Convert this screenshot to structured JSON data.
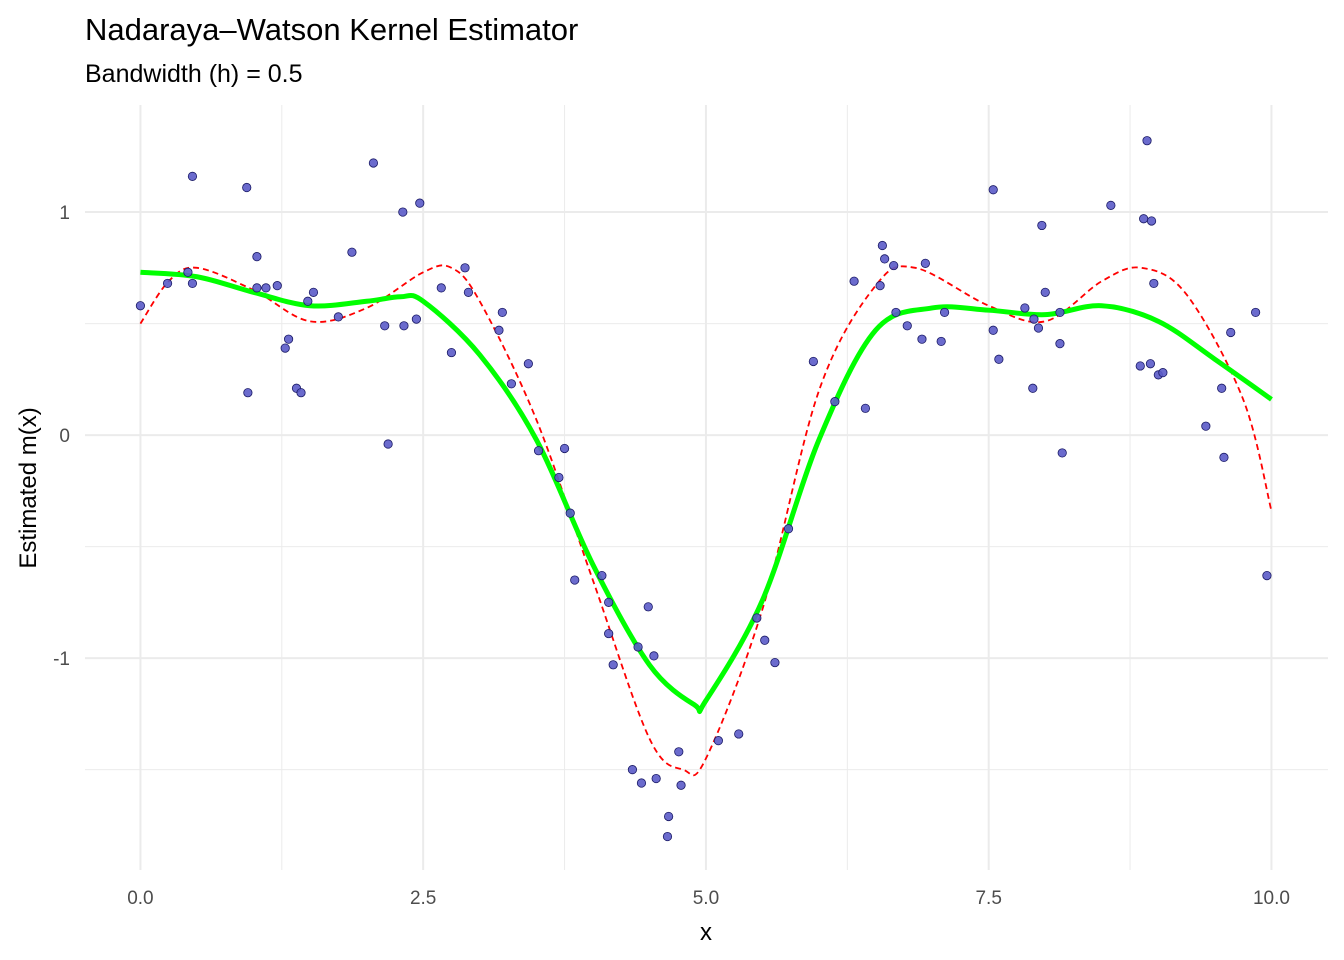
{
  "chart_data": {
    "type": "scatter",
    "title": "Nadaraya–Watson Kernel Estimator",
    "subtitle": "Bandwidth (h) = 0.5",
    "xlabel": "x",
    "ylabel": "Estimated m(x)",
    "xlim": [
      -0.49,
      10.5
    ],
    "ylim": [
      -1.95,
      1.48
    ],
    "xticks": [
      0,
      2.5,
      5,
      7.5,
      10
    ],
    "xtick_labels": [
      "0.0",
      "2.5",
      "5.0",
      "7.5",
      "10.0"
    ],
    "yticks": [
      -1,
      0,
      1
    ],
    "ytick_labels": [
      "-1",
      "0",
      "1"
    ],
    "grid": true,
    "colors": {
      "points": "#5b5bc8",
      "point_border": "#1a1a66",
      "estimate": "#00ff00",
      "true": "#ff0000",
      "grid": "#ebebeb"
    },
    "points": {
      "x": [
        0.0,
        0.24,
        0.42,
        0.46,
        0.46,
        0.94,
        0.95,
        1.03,
        1.03,
        1.11,
        1.21,
        1.28,
        1.31,
        1.38,
        1.42,
        1.48,
        1.53,
        1.75,
        1.87,
        2.06,
        2.16,
        2.19,
        2.32,
        2.33,
        2.44,
        2.47,
        2.66,
        2.75,
        2.87,
        2.9,
        3.17,
        3.2,
        3.28,
        3.43,
        3.52,
        3.7,
        3.75,
        3.8,
        3.84,
        4.08,
        4.14,
        4.14,
        4.18,
        4.35,
        4.4,
        4.43,
        4.49,
        4.54,
        4.56,
        4.67,
        4.66,
        4.76,
        4.78,
        5.11,
        5.29,
        5.45,
        5.52,
        5.61,
        5.73,
        5.95,
        6.14,
        6.31,
        6.41,
        6.54,
        6.56,
        6.58,
        6.66,
        6.68,
        6.78,
        6.91,
        6.94,
        7.08,
        7.11,
        7.54,
        7.54,
        7.59,
        7.82,
        7.89,
        7.9,
        7.94,
        7.97,
        8.0,
        8.13,
        8.13,
        8.15,
        8.58,
        8.84,
        8.87,
        8.9,
        8.93,
        8.94,
        8.96,
        9.0,
        9.04,
        9.42,
        9.56,
        9.58,
        9.64,
        9.86,
        9.96
      ],
      "y": [
        0.58,
        0.68,
        0.73,
        0.68,
        1.16,
        1.11,
        0.19,
        0.8,
        0.66,
        0.66,
        0.67,
        0.39,
        0.43,
        0.21,
        0.19,
        0.6,
        0.64,
        0.53,
        0.82,
        1.22,
        0.49,
        -0.04,
        1.0,
        0.49,
        0.52,
        1.04,
        0.66,
        0.37,
        0.75,
        0.64,
        0.47,
        0.55,
        0.23,
        0.32,
        -0.07,
        -0.19,
        -0.06,
        -0.35,
        -0.65,
        -0.63,
        -0.75,
        -0.89,
        -1.03,
        -1.5,
        -0.95,
        -1.56,
        -0.77,
        -0.99,
        -1.54,
        -1.71,
        -1.8,
        -1.42,
        -1.57,
        -1.37,
        -1.34,
        -0.82,
        -0.92,
        -1.02,
        -0.42,
        0.33,
        0.15,
        0.69,
        0.12,
        0.67,
        0.85,
        0.79,
        0.76,
        0.55,
        0.49,
        0.43,
        0.77,
        0.42,
        0.55,
        1.1,
        0.47,
        0.34,
        0.57,
        0.21,
        0.52,
        0.48,
        0.94,
        0.64,
        0.55,
        0.41,
        -0.08,
        1.03,
        0.31,
        0.97,
        1.32,
        0.32,
        0.96,
        0.68,
        0.27,
        0.28,
        0.04,
        0.21,
        -0.1,
        0.46,
        0.55,
        -0.63
      ]
    },
    "series": [
      {
        "style": "solid",
        "x": [
          0,
          0.5,
          1,
          1.5,
          2,
          2.3,
          2.5,
          3,
          3.5,
          4,
          4.5,
          4.9,
          5,
          5.5,
          6,
          6.5,
          7,
          7.5,
          8,
          8.5,
          9,
          9.5,
          10
        ],
        "y": [
          0.73,
          0.71,
          0.64,
          0.58,
          0.6,
          0.62,
          0.6,
          0.36,
          -0.02,
          -0.58,
          -1.03,
          -1.21,
          -1.19,
          -0.74,
          -0.02,
          0.47,
          0.57,
          0.56,
          0.54,
          0.58,
          0.51,
          0.34,
          0.16
        ]
      },
      {
        "style": "dashed",
        "x": [
          0,
          0.25,
          0.5,
          1,
          1.5,
          2,
          2.5,
          2.75,
          3,
          3.5,
          4,
          4.5,
          4.8,
          5,
          5.5,
          6,
          6.5,
          6.85,
          7.5,
          8,
          8.5,
          8.85,
          9.25,
          9.75,
          10
        ],
        "y": [
          0.5,
          0.69,
          0.75,
          0.65,
          0.51,
          0.57,
          0.73,
          0.75,
          0.6,
          0.07,
          -0.65,
          -1.36,
          -1.5,
          -1.45,
          -0.78,
          0.2,
          0.67,
          0.75,
          0.58,
          0.51,
          0.69,
          0.75,
          0.63,
          0.16,
          -0.34
        ]
      }
    ]
  }
}
